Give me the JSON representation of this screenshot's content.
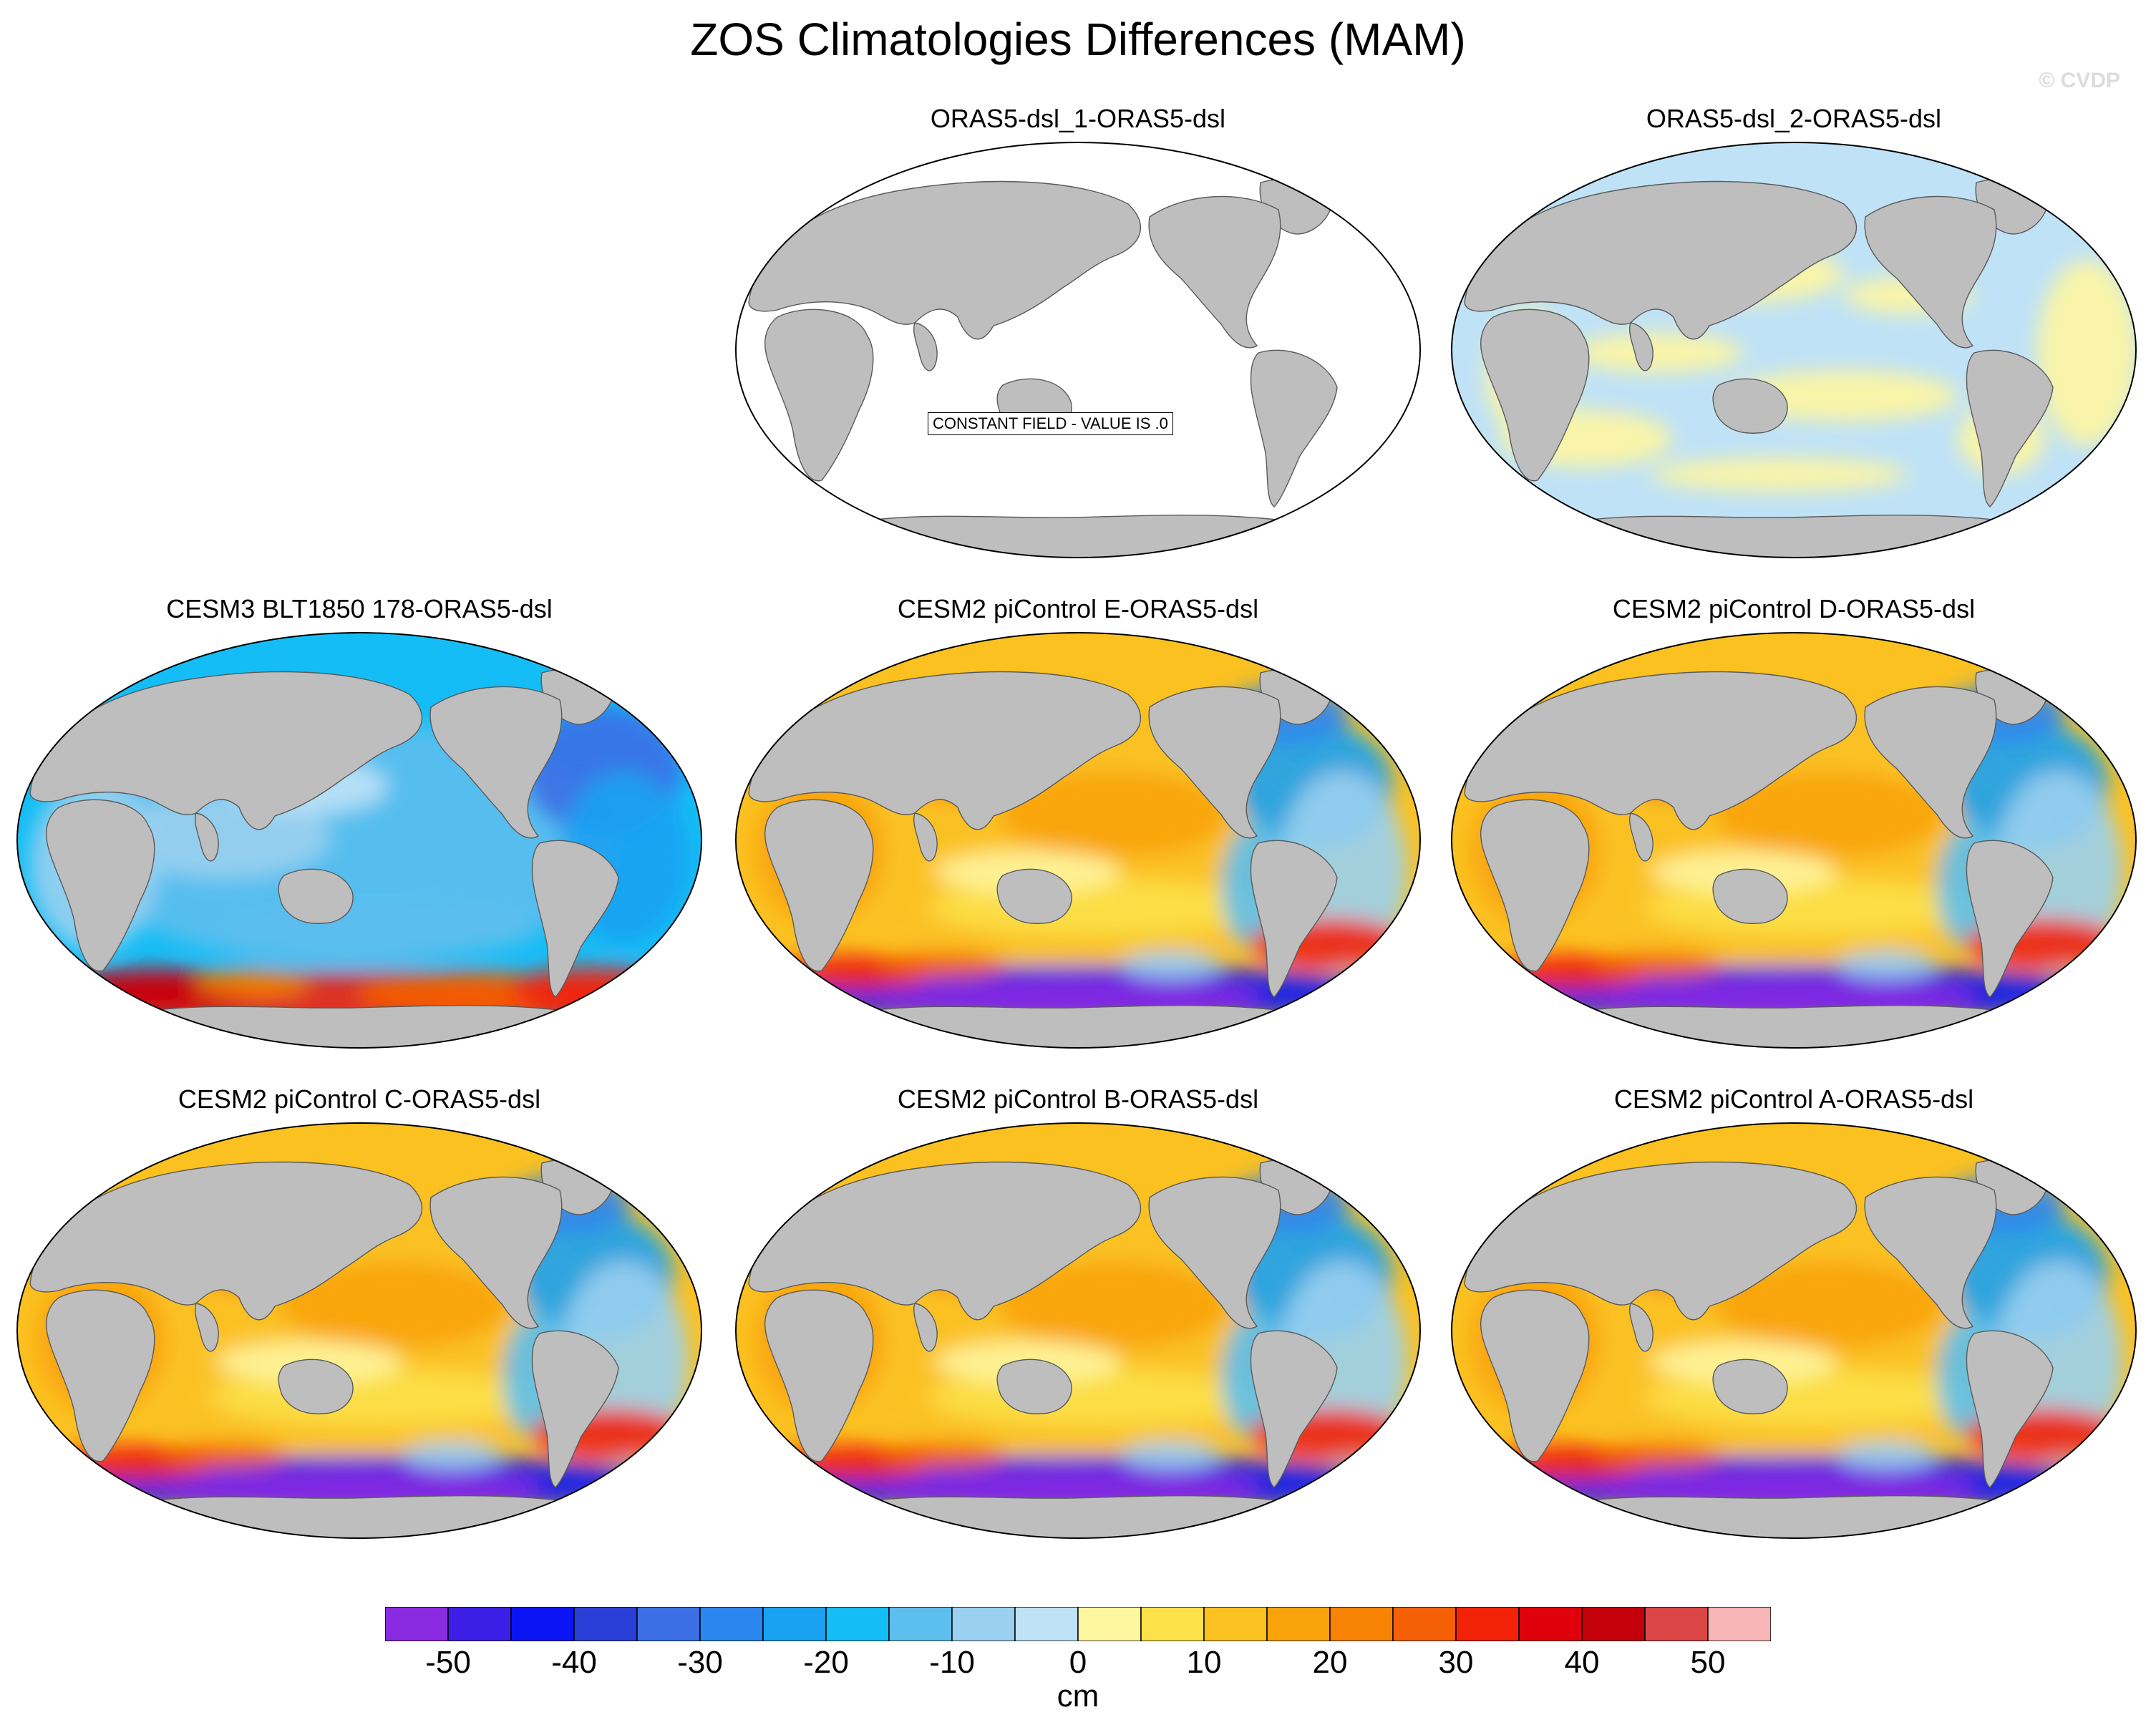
{
  "title": "ZOS Climatologies Differences (MAM)",
  "watermark": "© CVDP",
  "panels": [
    {
      "title": "ORAS5-dsl_1-ORAS5-dsl",
      "note": "CONSTANT FIELD - VALUE IS .0",
      "pattern": "constant"
    },
    {
      "title": "ORAS5-dsl_2-ORAS5-dsl",
      "pattern": "near-zero"
    },
    {
      "title": "CESM3 BLT1850 178-ORAS5-dsl",
      "pattern": "negative"
    },
    {
      "title": "CESM2 piControl E-ORAS5-dsl",
      "pattern": "positive"
    },
    {
      "title": "CESM2 piControl D-ORAS5-dsl",
      "pattern": "positive"
    },
    {
      "title": "CESM2 piControl C-ORAS5-dsl",
      "pattern": "positive"
    },
    {
      "title": "CESM2 piControl B-ORAS5-dsl",
      "pattern": "positive"
    },
    {
      "title": "CESM2 piControl A-ORAS5-dsl",
      "pattern": "positive"
    }
  ],
  "colorbar": {
    "unit": "cm",
    "ticks": [
      "-50",
      "-40",
      "-30",
      "-20",
      "-10",
      "0",
      "10",
      "20",
      "30",
      "40",
      "50"
    ],
    "colors": [
      "#8a2be2",
      "#3c1ee6",
      "#0a14f5",
      "#2a3fd8",
      "#3a6fe6",
      "#2b86f0",
      "#1aa2f2",
      "#14bdf5",
      "#5cbfee",
      "#9ad0f0",
      "#bfe2f7",
      "#fff6a0",
      "#fde148",
      "#fbc121",
      "#f9a30a",
      "#f88304",
      "#f55f05",
      "#f22208",
      "#e0000b",
      "#c4000b",
      "#dc4646",
      "#f7b5b5"
    ]
  },
  "land_color": "#bebebe"
}
